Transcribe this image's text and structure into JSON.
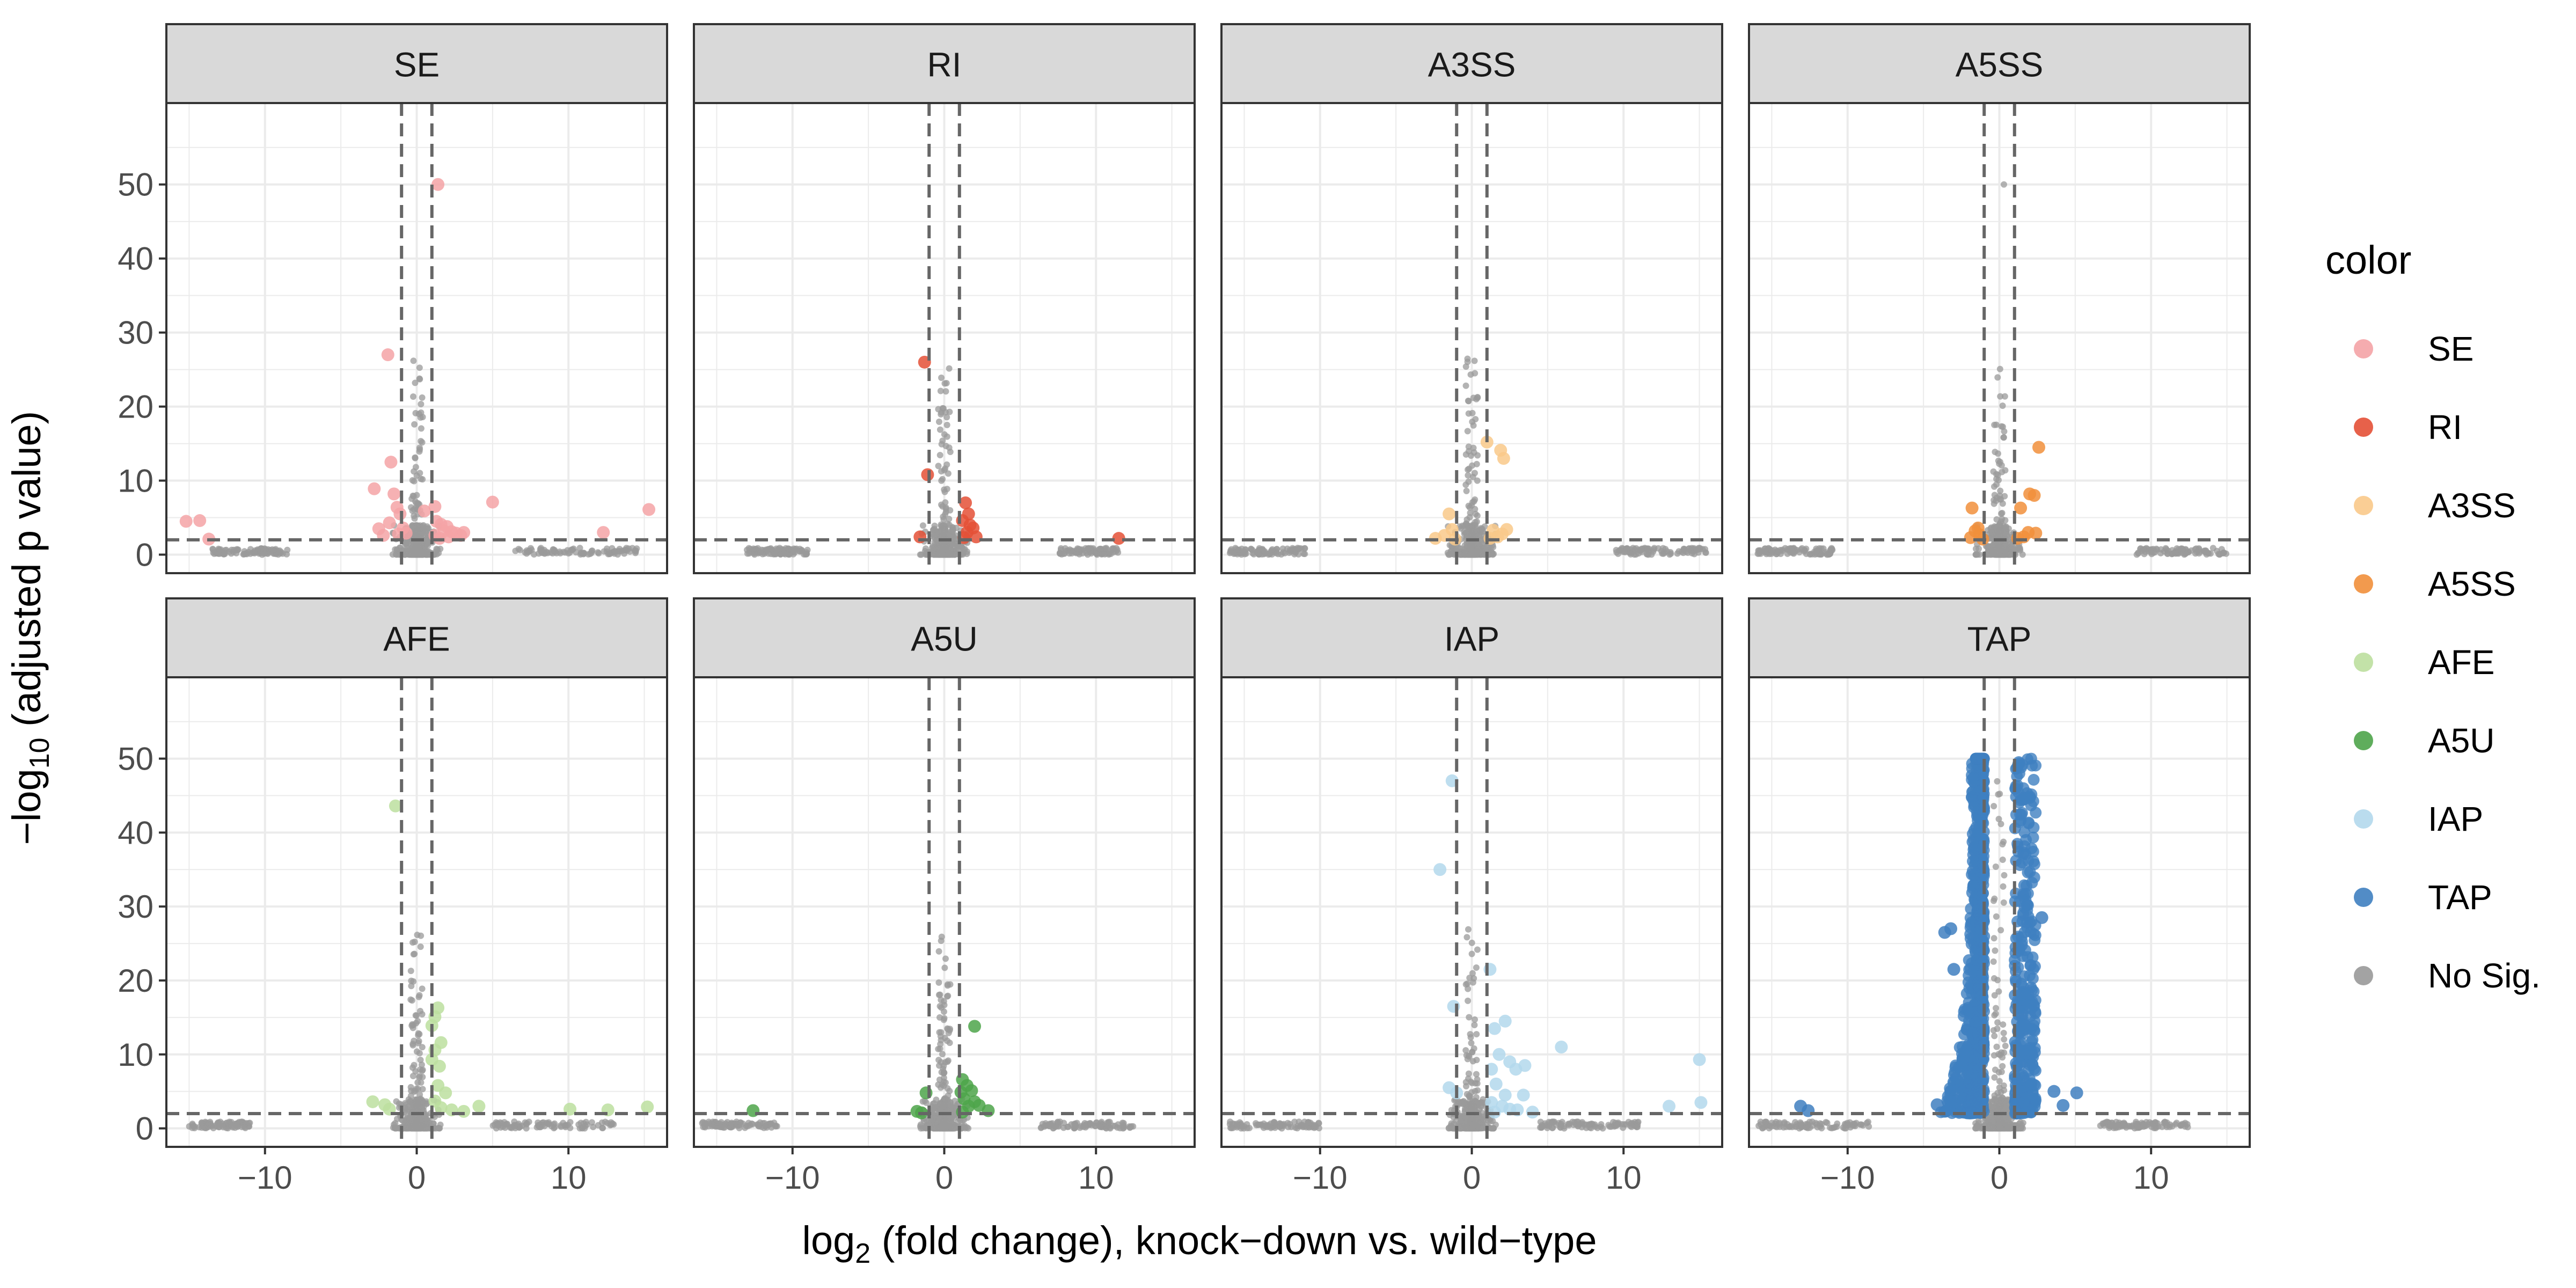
{
  "chart_data": {
    "type": "scatter",
    "xlabel": "log2 (fold change), knock−down vs. wild−type",
    "xlabel_parts": {
      "pre": "log",
      "sub": "2",
      "post": " (fold change), knock−down vs. wild−type"
    },
    "ylabel": "−log10 (adjusted p value)",
    "ylabel_parts": {
      "pre": "−log",
      "sub": "10",
      "post": " (adjusted p value)"
    },
    "xlim": [
      -16.5,
      16.5
    ],
    "ylim": [
      -2.5,
      61
    ],
    "x_ticks": [
      -10,
      0,
      10
    ],
    "x_tick_labels": [
      "−10",
      "0",
      "10"
    ],
    "y_ticks": [
      0,
      10,
      20,
      30,
      40,
      50
    ],
    "y_tick_labels": [
      "0",
      "10",
      "20",
      "30",
      "40",
      "50"
    ],
    "threshold_lines": {
      "x": [
        -1,
        1
      ],
      "y": 2
    },
    "grid": true,
    "legend": {
      "title": "color",
      "placement": "right",
      "items": [
        {
          "label": "SE",
          "color": "#f4a3a6"
        },
        {
          "label": "RI",
          "color": "#e45036"
        },
        {
          "label": "A3SS",
          "color": "#f9c98a"
        },
        {
          "label": "A5SS",
          "color": "#f18f3b"
        },
        {
          "label": "AFE",
          "color": "#bcdf9f"
        },
        {
          "label": "A5U",
          "color": "#4ea44a"
        },
        {
          "label": "IAP",
          "color": "#b3d8ec"
        },
        {
          "label": "TAP",
          "color": "#3f7fc0"
        },
        {
          "label": "No Sig.",
          "color": "#999999"
        }
      ]
    },
    "nosig_color": "#999999",
    "panels": [
      {
        "name": "SE",
        "color": "#f4a3a6",
        "points": [
          [
            -15.2,
            4.5
          ],
          [
            -14.3,
            4.6
          ],
          [
            -13.7,
            2.1
          ],
          [
            -2.8,
            8.9
          ],
          [
            -2.5,
            3.5
          ],
          [
            -1.9,
            27
          ],
          [
            -1.7,
            12.5
          ],
          [
            -1.5,
            8.2
          ],
          [
            -1.3,
            6.4
          ],
          [
            -2.2,
            2.6
          ],
          [
            -1.8,
            4.3
          ],
          [
            -1.1,
            5.5
          ],
          [
            -1.2,
            2.8
          ],
          [
            -0.9,
            3.6
          ],
          [
            -0.7,
            2.9
          ],
          [
            1.4,
            50
          ],
          [
            1.2,
            6.5
          ],
          [
            1.3,
            4.5
          ],
          [
            1.6,
            4.1
          ],
          [
            1.8,
            3.2
          ],
          [
            2.0,
            3.8
          ],
          [
            2.3,
            3.1
          ],
          [
            2.6,
            2.9
          ],
          [
            1.2,
            2.6
          ],
          [
            1.5,
            2.2
          ],
          [
            2.1,
            2.4
          ],
          [
            2.9,
            2.6
          ],
          [
            3.1,
            3.0
          ],
          [
            5,
            7.1
          ],
          [
            12.3,
            3.0
          ],
          [
            15.3,
            6.1
          ],
          [
            0.5,
            5.9
          ]
        ],
        "nosig": {
          "left": [
            -13.5,
            -8.5
          ],
          "right": [
            6.5,
            14.5
          ]
        }
      },
      {
        "name": "RI",
        "color": "#e45036",
        "points": [
          [
            -1.3,
            26
          ],
          [
            -1.1,
            10.8
          ],
          [
            -1.6,
            2.4
          ],
          [
            1.4,
            7
          ],
          [
            1.6,
            5.5
          ],
          [
            1.2,
            4.6
          ],
          [
            1.9,
            3.6
          ],
          [
            1.5,
            3.0
          ],
          [
            2.1,
            2.4
          ],
          [
            1.3,
            2.3
          ],
          [
            1.7,
            4.0
          ],
          [
            11.5,
            2.2
          ]
        ],
        "nosig": {
          "left": [
            -13,
            -9
          ],
          "right": [
            7.5,
            11.5
          ]
        }
      },
      {
        "name": "A3SS",
        "color": "#f9c98a",
        "points": [
          [
            -1.5,
            5.5
          ],
          [
            -1.3,
            3.4
          ],
          [
            -1.8,
            2.6
          ],
          [
            -2.4,
            2.2
          ],
          [
            -1.1,
            2.1
          ],
          [
            1.0,
            15.2
          ],
          [
            1.9,
            14.1
          ],
          [
            2.1,
            13.0
          ],
          [
            1.4,
            3.3
          ],
          [
            1.7,
            2.4
          ],
          [
            2.0,
            2.8
          ],
          [
            2.3,
            3.4
          ],
          [
            1.2,
            2.2
          ]
        ],
        "nosig": {
          "left": [
            -16,
            -11
          ],
          "right": [
            9.5,
            15.5
          ]
        }
      },
      {
        "name": "A5SS",
        "color": "#f18f3b",
        "points": [
          [
            -1.8,
            6.3
          ],
          [
            -1.6,
            3.2
          ],
          [
            -1.3,
            2.7
          ],
          [
            -1.9,
            2.3
          ],
          [
            -1.1,
            2.1
          ],
          [
            -1.4,
            3.6
          ],
          [
            1.4,
            6.3
          ],
          [
            1.9,
            3.0
          ],
          [
            1.6,
            2.4
          ],
          [
            2.0,
            8.2
          ],
          [
            2.3,
            8.0
          ],
          [
            2.6,
            14.5
          ],
          [
            2.4,
            2.9
          ],
          [
            1.2,
            2.2
          ]
        ],
        "nosig": {
          "left": [
            -16,
            -11
          ],
          "right": [
            9,
            15
          ]
        }
      },
      {
        "name": "AFE",
        "color": "#bcdf9f",
        "points": [
          [
            -1.4,
            43.6
          ],
          [
            1.4,
            16.3
          ],
          [
            1.2,
            15.1
          ],
          [
            1.0,
            13.9
          ],
          [
            1.6,
            11.6
          ],
          [
            1.2,
            10.6
          ],
          [
            1.5,
            8.4
          ],
          [
            1.0,
            9.3
          ],
          [
            1.4,
            5.8
          ],
          [
            1.9,
            4.8
          ],
          [
            1.2,
            3.7
          ],
          [
            1.6,
            2.8
          ],
          [
            2.3,
            2.5
          ],
          [
            3.1,
            2.3
          ],
          [
            4.1,
            3.0
          ],
          [
            -2.9,
            3.6
          ],
          [
            -2.1,
            3.2
          ],
          [
            -1.8,
            2.6
          ],
          [
            10.1,
            2.6
          ],
          [
            12.6,
            2.5
          ],
          [
            15.2,
            2.9
          ]
        ],
        "nosig": {
          "left": [
            -15,
            -11
          ],
          "right": [
            5,
            13
          ]
        }
      },
      {
        "name": "A5U",
        "color": "#4ea44a",
        "points": [
          [
            -12.6,
            2.4
          ],
          [
            -1.8,
            2.3
          ],
          [
            -1.2,
            4.8
          ],
          [
            -1.5,
            2.1
          ],
          [
            1.2,
            6.6
          ],
          [
            1.5,
            5.8
          ],
          [
            1.1,
            4.9
          ],
          [
            1.8,
            5.1
          ],
          [
            1.3,
            4.0
          ],
          [
            2.0,
            3.6
          ],
          [
            1.6,
            3.0
          ],
          [
            2.3,
            3.1
          ],
          [
            1.2,
            2.2
          ],
          [
            2.9,
            2.4
          ],
          [
            2.0,
            13.8
          ]
        ],
        "nosig": {
          "left": [
            -16,
            -11
          ],
          "right": [
            6,
            12.5
          ]
        }
      },
      {
        "name": "IAP",
        "color": "#b3d8ec",
        "points": [
          [
            -1.3,
            47
          ],
          [
            -2.1,
            35
          ],
          [
            -1.2,
            16.5
          ],
          [
            -1.5,
            5.5
          ],
          [
            -1.0,
            4.8
          ],
          [
            1.2,
            21.5
          ],
          [
            1.5,
            13.5
          ],
          [
            2.2,
            14.5
          ],
          [
            1.8,
            10
          ],
          [
            2.5,
            9
          ],
          [
            1.3,
            8
          ],
          [
            2.9,
            8
          ],
          [
            3.5,
            8.5
          ],
          [
            1.6,
            6
          ],
          [
            2.2,
            4.5
          ],
          [
            3.4,
            4.5
          ],
          [
            1.3,
            3.5
          ],
          [
            2.0,
            3
          ],
          [
            2.5,
            2.6
          ],
          [
            3.0,
            2.5
          ],
          [
            4.0,
            2.2
          ],
          [
            1.5,
            2.2
          ],
          [
            5.9,
            11
          ],
          [
            13.0,
            3
          ],
          [
            15.0,
            9.3
          ],
          [
            15.1,
            3.5
          ]
        ],
        "nosig": {
          "left": [
            -16,
            -10
          ],
          "right": [
            4.5,
            11
          ]
        }
      },
      {
        "name": "TAP",
        "color": "#3f7fc0",
        "points": [
          [
            -13.1,
            3
          ],
          [
            -12.6,
            2.4
          ],
          [
            2.8,
            28.5
          ],
          [
            3.6,
            5.0
          ],
          [
            4.2,
            3.1
          ],
          [
            5.1,
            4.8
          ],
          [
            -4.1,
            3.2
          ],
          [
            -3.6,
            26.5
          ],
          [
            -3.2,
            27
          ],
          [
            -3.0,
            21.5
          ]
        ],
        "dense": true,
        "nosig": {
          "left": [
            -16,
            -8.5
          ],
          "right": [
            6.5,
            12.5
          ]
        }
      }
    ]
  }
}
